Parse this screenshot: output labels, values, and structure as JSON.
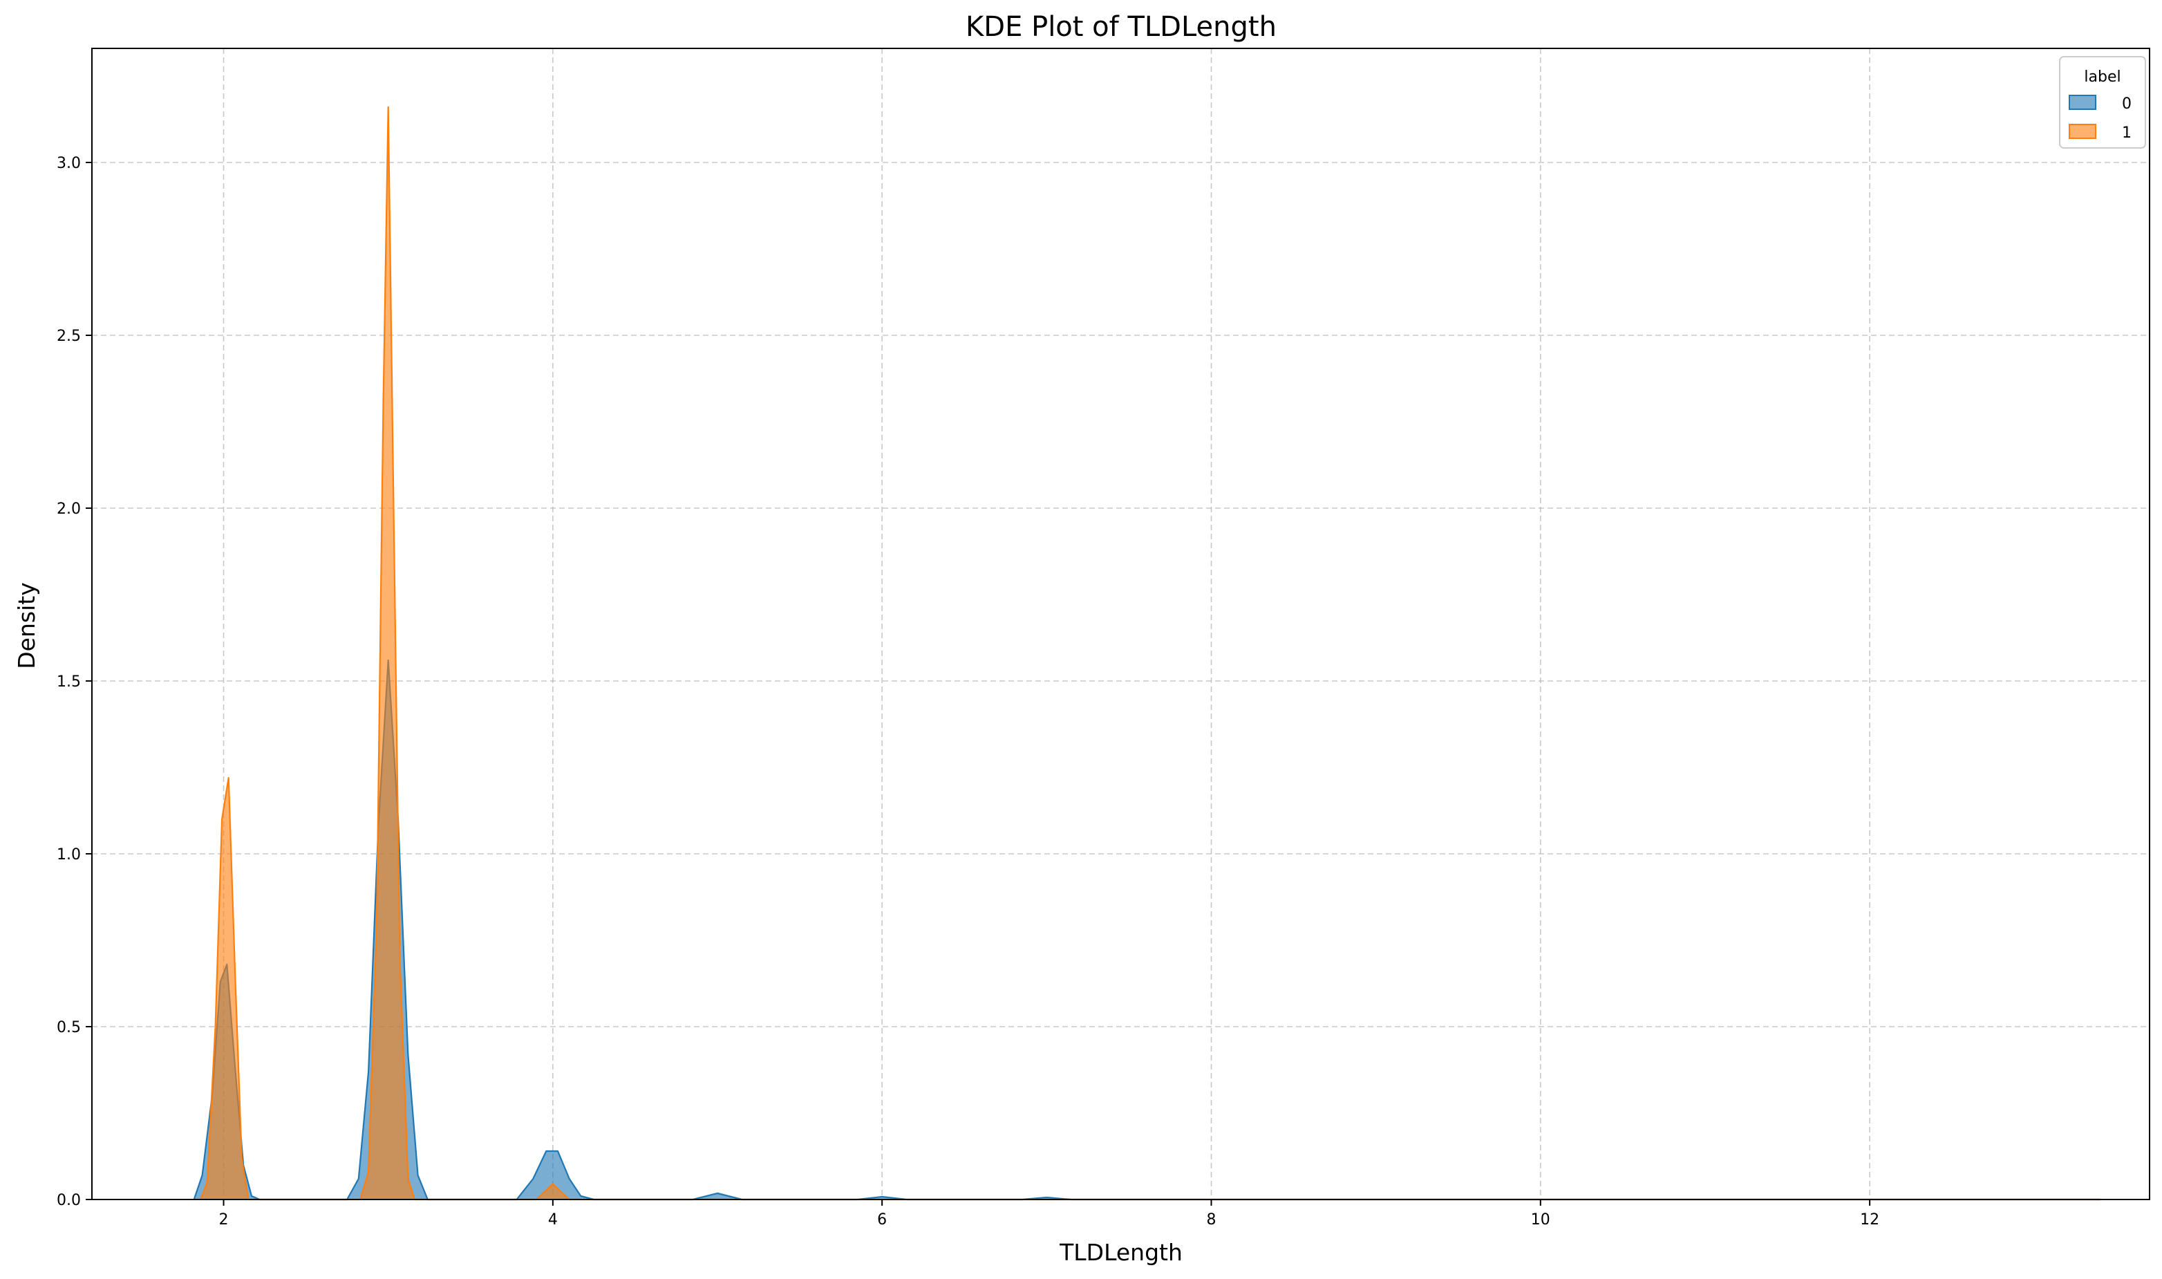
{
  "chart_data": {
    "type": "area",
    "title": "KDE Plot of TLDLength",
    "xlabel": "TLDLength",
    "ylabel": "Density",
    "xlim": [
      1.2,
      13.7
    ],
    "ylim": [
      0,
      3.33
    ],
    "xticks": [
      2,
      4,
      6,
      8,
      10,
      12
    ],
    "yticks": [
      0.0,
      0.5,
      1.0,
      1.5,
      2.0,
      2.5,
      3.0
    ],
    "xtick_labels": [
      "2",
      "4",
      "6",
      "8",
      "10",
      "12"
    ],
    "ytick_labels": [
      "0.0",
      "0.5",
      "1.0",
      "1.5",
      "2.0",
      "2.5",
      "3.0"
    ],
    "grid": true,
    "legend": {
      "title": "label",
      "position": "top-right"
    },
    "series": [
      {
        "name": "0",
        "color": "#1f77b4",
        "points": [
          [
            1.82,
            0.0
          ],
          [
            1.87,
            0.07
          ],
          [
            1.93,
            0.3
          ],
          [
            1.98,
            0.63
          ],
          [
            2.02,
            0.68
          ],
          [
            2.07,
            0.38
          ],
          [
            2.12,
            0.1
          ],
          [
            2.17,
            0.01
          ],
          [
            2.22,
            0.0
          ],
          [
            2.75,
            0.0
          ],
          [
            2.82,
            0.06
          ],
          [
            2.88,
            0.37
          ],
          [
            2.94,
            1.08
          ],
          [
            3.0,
            1.56
          ],
          [
            3.06,
            1.1
          ],
          [
            3.12,
            0.42
          ],
          [
            3.18,
            0.07
          ],
          [
            3.24,
            0.0
          ],
          [
            3.78,
            0.0
          ],
          [
            3.88,
            0.06
          ],
          [
            3.96,
            0.14
          ],
          [
            4.03,
            0.14
          ],
          [
            4.1,
            0.06
          ],
          [
            4.17,
            0.01
          ],
          [
            4.25,
            0.0
          ],
          [
            4.85,
            0.0
          ],
          [
            5.0,
            0.018
          ],
          [
            5.15,
            0.0
          ],
          [
            5.85,
            0.0
          ],
          [
            6.0,
            0.008
          ],
          [
            6.15,
            0.0
          ],
          [
            6.85,
            0.0
          ],
          [
            7.0,
            0.006
          ],
          [
            7.15,
            0.0
          ],
          [
            13.4,
            0.0
          ]
        ]
      },
      {
        "name": "1",
        "color": "#ff7f0e",
        "points": [
          [
            1.86,
            0.0
          ],
          [
            1.9,
            0.05
          ],
          [
            1.95,
            0.5
          ],
          [
            1.99,
            1.1
          ],
          [
            2.03,
            1.22
          ],
          [
            2.07,
            0.65
          ],
          [
            2.11,
            0.12
          ],
          [
            2.15,
            0.0
          ],
          [
            2.83,
            0.0
          ],
          [
            2.88,
            0.08
          ],
          [
            2.93,
            0.8
          ],
          [
            2.97,
            2.3
          ],
          [
            3.0,
            3.16
          ],
          [
            3.03,
            2.1
          ],
          [
            3.07,
            0.7
          ],
          [
            3.12,
            0.06
          ],
          [
            3.16,
            0.0
          ],
          [
            3.9,
            0.0
          ],
          [
            4.0,
            0.045
          ],
          [
            4.1,
            0.0
          ],
          [
            13.4,
            0.0
          ]
        ]
      }
    ]
  }
}
